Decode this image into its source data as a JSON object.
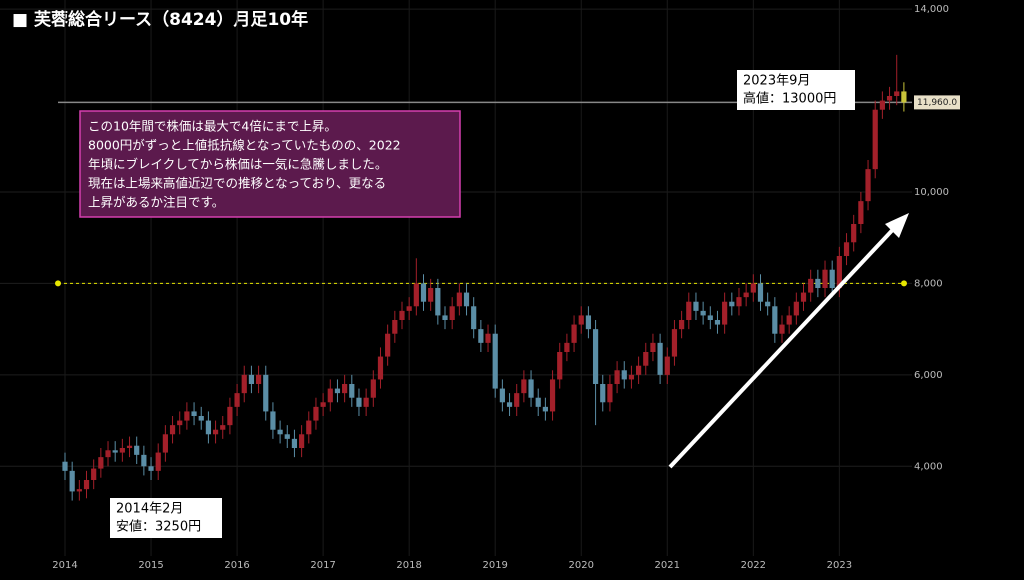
{
  "chart_data": {
    "type": "candlestick",
    "title": "■ 芙蓉総合リース（8424）月足10年",
    "categories": [
      "2014",
      null,
      null,
      null,
      null,
      null,
      null,
      null,
      null,
      null,
      null,
      null,
      "2015",
      null,
      null,
      null,
      null,
      null,
      null,
      null,
      null,
      null,
      null,
      null,
      "2016",
      null,
      null,
      null,
      null,
      null,
      null,
      null,
      null,
      null,
      null,
      null,
      "2017",
      null,
      null,
      null,
      null,
      null,
      null,
      null,
      null,
      null,
      null,
      null,
      "2018",
      null,
      null,
      null,
      null,
      null,
      null,
      null,
      null,
      null,
      null,
      null,
      "2019",
      null,
      null,
      null,
      null,
      null,
      null,
      null,
      null,
      null,
      null,
      null,
      "2020",
      null,
      null,
      null,
      null,
      null,
      null,
      null,
      null,
      null,
      null,
      null,
      "2021",
      null,
      null,
      null,
      null,
      null,
      null,
      null,
      null,
      null,
      null,
      null,
      "2022",
      null,
      null,
      null,
      null,
      null,
      null,
      null,
      null,
      null,
      null,
      null,
      "2023",
      null,
      null,
      null,
      null,
      null,
      null,
      null,
      null,
      null
    ],
    "open": [
      4100,
      3900,
      3450,
      3500,
      3700,
      3950,
      4200,
      4350,
      4300,
      4400,
      4450,
      4250,
      4000,
      3900,
      4300,
      4700,
      4900,
      5000,
      5200,
      5100,
      5000,
      4700,
      4800,
      4900,
      5300,
      5600,
      6000,
      5800,
      6000,
      5200,
      4800,
      4700,
      4600,
      4400,
      4700,
      5000,
      5300,
      5400,
      5700,
      5600,
      5800,
      5500,
      5300,
      5500,
      5900,
      6400,
      6900,
      7200,
      7400,
      7500,
      8000,
      7600,
      7900,
      7300,
      7200,
      7500,
      7800,
      7500,
      7000,
      6700,
      6900,
      5700,
      5400,
      5300,
      5600,
      5900,
      5500,
      5300,
      5200,
      5900,
      6500,
      6700,
      7100,
      7300,
      7000,
      5800,
      5400,
      5800,
      6100,
      5900,
      6000,
      6200,
      6500,
      6700,
      6000,
      6400,
      7000,
      7200,
      7600,
      7400,
      7300,
      7200,
      7100,
      7600,
      7500,
      7700,
      7800,
      8000,
      7600,
      7500,
      6900,
      7100,
      7300,
      7600,
      7800,
      8100,
      7900,
      8300,
      7900,
      8600,
      8900,
      9300,
      9800,
      10500,
      11800,
      12000,
      12100,
      12200
    ],
    "high": [
      4300,
      4100,
      3700,
      3900,
      4150,
      4400,
      4550,
      4550,
      4600,
      4650,
      4650,
      4450,
      4200,
      4500,
      4900,
      5100,
      5200,
      5400,
      5400,
      5300,
      5200,
      5000,
      5100,
      5500,
      5800,
      6200,
      6200,
      6200,
      6200,
      5400,
      5000,
      4900,
      4800,
      4900,
      5200,
      5500,
      5600,
      5900,
      5900,
      6000,
      6000,
      5700,
      5700,
      6100,
      6600,
      7100,
      7400,
      7600,
      7700,
      8550,
      8200,
      8100,
      8100,
      7500,
      7700,
      8000,
      8000,
      7700,
      7200,
      7100,
      7100,
      5900,
      5600,
      5800,
      6100,
      6100,
      5700,
      5500,
      6100,
      6700,
      6900,
      7300,
      7500,
      7500,
      7200,
      6000,
      6000,
      6300,
      6300,
      6200,
      6400,
      6700,
      6900,
      6900,
      6600,
      7200,
      7400,
      7800,
      7800,
      7600,
      7500,
      7400,
      7800,
      7800,
      7900,
      8000,
      8200,
      8200,
      7800,
      7700,
      7300,
      7500,
      7800,
      8000,
      8300,
      8300,
      8500,
      8500,
      8800,
      9100,
      9500,
      10000,
      10700,
      12000,
      12200,
      12300,
      13000,
      12400
    ],
    "low": [
      3700,
      3250,
      3250,
      3300,
      3500,
      3750,
      4000,
      4100,
      4100,
      4200,
      4050,
      3800,
      3700,
      3700,
      4100,
      4500,
      4700,
      4800,
      4900,
      4800,
      4500,
      4500,
      4600,
      4700,
      5100,
      5400,
      5600,
      5600,
      5000,
      4600,
      4500,
      4400,
      4200,
      4200,
      4500,
      4800,
      5100,
      5200,
      5400,
      5400,
      5300,
      5100,
      5100,
      5300,
      5700,
      6200,
      6700,
      7000,
      7200,
      7300,
      7400,
      7400,
      7100,
      7000,
      7000,
      7300,
      7300,
      6800,
      6500,
      6500,
      5500,
      5200,
      5100,
      5100,
      5400,
      5300,
      5100,
      5000,
      5000,
      5700,
      6300,
      6500,
      6900,
      6800,
      4900,
      5200,
      5200,
      5600,
      5700,
      5700,
      5800,
      6000,
      6300,
      5800,
      5800,
      6200,
      6800,
      7000,
      7200,
      7100,
      7000,
      6900,
      6900,
      7300,
      7300,
      7500,
      7600,
      7400,
      7300,
      6700,
      6700,
      6900,
      7100,
      7400,
      7600,
      7700,
      7700,
      7700,
      7700,
      8400,
      8700,
      9100,
      9600,
      10300,
      11600,
      11800,
      11900,
      11760
    ],
    "close": [
      3900,
      3450,
      3500,
      3700,
      3950,
      4200,
      4350,
      4300,
      4400,
      4450,
      4250,
      4000,
      3900,
      4300,
      4700,
      4900,
      5000,
      5200,
      5100,
      5000,
      4700,
      4800,
      4900,
      5300,
      5600,
      6000,
      5800,
      6000,
      5200,
      4800,
      4700,
      4600,
      4400,
      4700,
      5000,
      5300,
      5400,
      5700,
      5600,
      5800,
      5500,
      5300,
      5500,
      5900,
      6400,
      6900,
      7200,
      7400,
      7500,
      8000,
      7600,
      7900,
      7300,
      7200,
      7500,
      7800,
      7500,
      7000,
      6700,
      6900,
      5700,
      5400,
      5300,
      5600,
      5900,
      5500,
      5300,
      5200,
      5900,
      6500,
      6700,
      7100,
      7300,
      7000,
      5800,
      5400,
      5800,
      6100,
      5900,
      6000,
      6200,
      6500,
      6700,
      6000,
      6400,
      7000,
      7200,
      7600,
      7400,
      7300,
      7200,
      7100,
      7600,
      7500,
      7700,
      7800,
      8000,
      7600,
      7500,
      6900,
      7100,
      7300,
      7600,
      7800,
      8100,
      7900,
      8300,
      7900,
      8600,
      8900,
      9300,
      9800,
      10500,
      11800,
      12000,
      12100,
      12200,
      11960
    ],
    "up_color": "#a3202a",
    "down_color": "#5b8ea6",
    "last_color": "#c9c43a",
    "ylim": [
      1600,
      14200
    ],
    "yticks": [
      {
        "value": 4000,
        "label": "4,000"
      },
      {
        "value": 6000,
        "label": "6,000"
      },
      {
        "value": 8000,
        "label": "8,000"
      },
      {
        "value": 10000,
        "label": "10,000"
      },
      {
        "value": 14000,
        "label": "14,000"
      }
    ],
    "grid": true,
    "resistance": {
      "value": 8000,
      "color": "#e6e600"
    },
    "price_line": {
      "value": 11960,
      "label": "11,960.0",
      "color": "#888"
    },
    "note": [
      "この10年間で株価は最大で4倍にまで上昇。",
      "8000円がずっと上値抵抗線となっていたものの、2022",
      "年頃にブレイクしてから株価は一気に急騰しました。",
      "現在は上場来高値近辺での推移となっており、更なる",
      "上昇があるか注目です。"
    ],
    "high_note": [
      "2023年9月",
      "高値：13000円"
    ],
    "low_note": [
      "2014年2月",
      "安値：3250円"
    ]
  }
}
